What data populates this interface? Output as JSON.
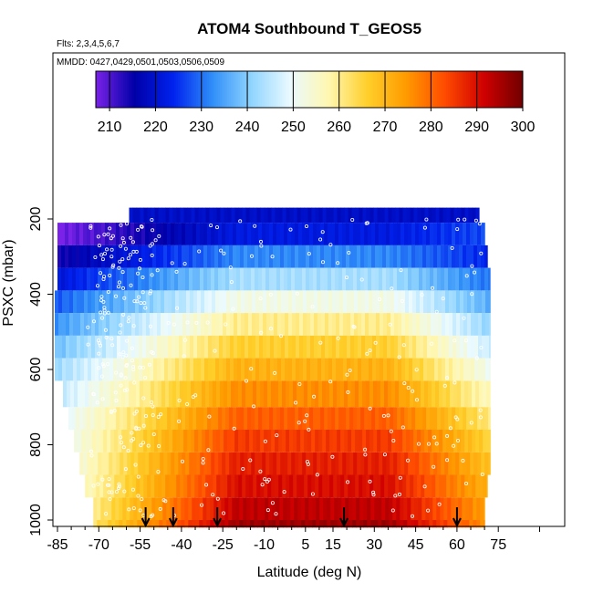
{
  "chart_data": {
    "type": "heatmap",
    "title": "ATOM4 Southbound T_GEOS5",
    "subtitle_flights": "Flts: 2,3,4,5,6,7",
    "subtitle_dates": "MMDD: 0427,0429,0501,0503,0506,0509",
    "xlabel": "Latitude (deg N)",
    "ylabel": "PSXC (mbar)",
    "x_ticks": [
      -85,
      -70,
      -55,
      -40,
      -25,
      -10,
      5,
      15,
      30,
      45,
      60,
      75
    ],
    "y_ticks": [
      200,
      400,
      600,
      800,
      1000
    ],
    "xlim": [
      -87,
      90
    ],
    "ylim": [
      1020,
      20
    ],
    "y_inverted": true,
    "colorbar": {
      "ticks": [
        210,
        220,
        230,
        240,
        250,
        260,
        270,
        280,
        290,
        300
      ],
      "range": [
        207,
        300
      ],
      "colors": [
        "#7a22e8",
        "#0000a8",
        "#0022ee",
        "#2f8ef8",
        "#8fd4ff",
        "#eafaff",
        "#fff7b0",
        "#ffcf2a",
        "#ff9a00",
        "#ff4a00",
        "#cf0000",
        "#700000"
      ]
    },
    "layers": [
      {
        "p_top": 170,
        "p_bot": 210,
        "lat_min": -59,
        "lat_max": 68,
        "t_south": 219,
        "t_north": 219,
        "t_core": 219
      },
      {
        "p_top": 210,
        "p_bot": 270,
        "lat_min": -85,
        "lat_max": 70,
        "t_south": 207,
        "t_north": 227,
        "t_core": 222
      },
      {
        "p_top": 270,
        "p_bot": 330,
        "lat_min": -85,
        "lat_max": 71,
        "t_south": 214,
        "t_north": 224,
        "t_core": 232
      },
      {
        "p_top": 330,
        "p_bot": 390,
        "lat_min": -85,
        "lat_max": 72,
        "t_south": 221,
        "t_north": 230,
        "t_core": 243
      },
      {
        "p_top": 390,
        "p_bot": 450,
        "lat_min": -86,
        "lat_max": 72,
        "t_south": 228,
        "t_north": 236,
        "t_core": 252
      },
      {
        "p_top": 450,
        "p_bot": 510,
        "lat_min": -86,
        "lat_max": 72,
        "t_south": 233,
        "t_north": 241,
        "t_core": 260
      },
      {
        "p_top": 510,
        "p_bot": 570,
        "lat_min": -86,
        "lat_max": 72,
        "t_south": 238,
        "t_north": 246,
        "t_core": 266
      },
      {
        "p_top": 570,
        "p_bot": 630,
        "lat_min": -86,
        "lat_max": 72,
        "t_south": 242,
        "t_north": 251,
        "t_core": 271
      },
      {
        "p_top": 630,
        "p_bot": 700,
        "lat_min": -83,
        "lat_max": 72,
        "t_south": 246,
        "t_north": 256,
        "t_core": 276
      },
      {
        "p_top": 700,
        "p_bot": 760,
        "lat_min": -81,
        "lat_max": 72,
        "t_south": 250,
        "t_north": 261,
        "t_core": 281
      },
      {
        "p_top": 760,
        "p_bot": 820,
        "lat_min": -79,
        "lat_max": 72,
        "t_south": 252,
        "t_north": 265,
        "t_core": 285
      },
      {
        "p_top": 820,
        "p_bot": 880,
        "lat_min": -77,
        "lat_max": 72,
        "t_south": 254,
        "t_north": 268,
        "t_core": 288
      },
      {
        "p_top": 880,
        "p_bot": 940,
        "lat_min": -75,
        "lat_max": 71,
        "t_south": 256,
        "t_north": 271,
        "t_core": 290
      },
      {
        "p_top": 940,
        "p_bot": 1000,
        "lat_min": -72,
        "lat_max": 70,
        "t_south": 260,
        "t_north": 274,
        "t_core": 293
      },
      {
        "p_top": 1000,
        "p_bot": 1020,
        "lat_min": -72,
        "lat_max": 70,
        "t_south": 262,
        "t_north": 276,
        "t_core": 296
      }
    ],
    "arrows_latitude": [
      -53,
      -43,
      -27,
      19,
      60
    ]
  }
}
